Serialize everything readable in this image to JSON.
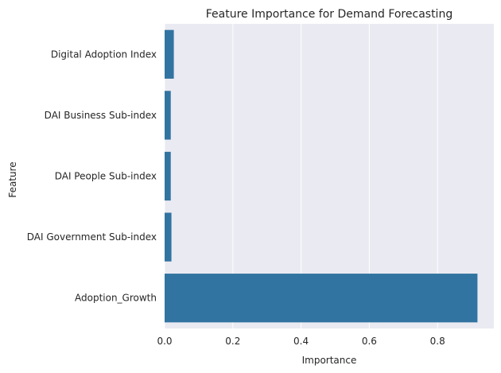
{
  "chart_data": {
    "type": "bar",
    "orientation": "horizontal",
    "title": "Feature Importance for Demand Forecasting",
    "xlabel": "Importance",
    "ylabel": "Feature",
    "categories": [
      "Digital Adoption Index",
      "DAI Business Sub-index",
      "DAI People Sub-index",
      "DAI Government Sub-index",
      "Adoption_Growth"
    ],
    "values": [
      0.027,
      0.018,
      0.018,
      0.02,
      0.917
    ],
    "xlim": [
      0,
      0.965
    ],
    "xticks": [
      0.0,
      0.2,
      0.4,
      0.6,
      0.8
    ],
    "xtick_labels": [
      "0.0",
      "0.2",
      "0.4",
      "0.6",
      "0.8"
    ],
    "grid": true,
    "colors": {
      "bar": "#3274a1",
      "plot_background": "#eaeaf2",
      "grid": "#ffffff",
      "text": "#262626"
    }
  }
}
